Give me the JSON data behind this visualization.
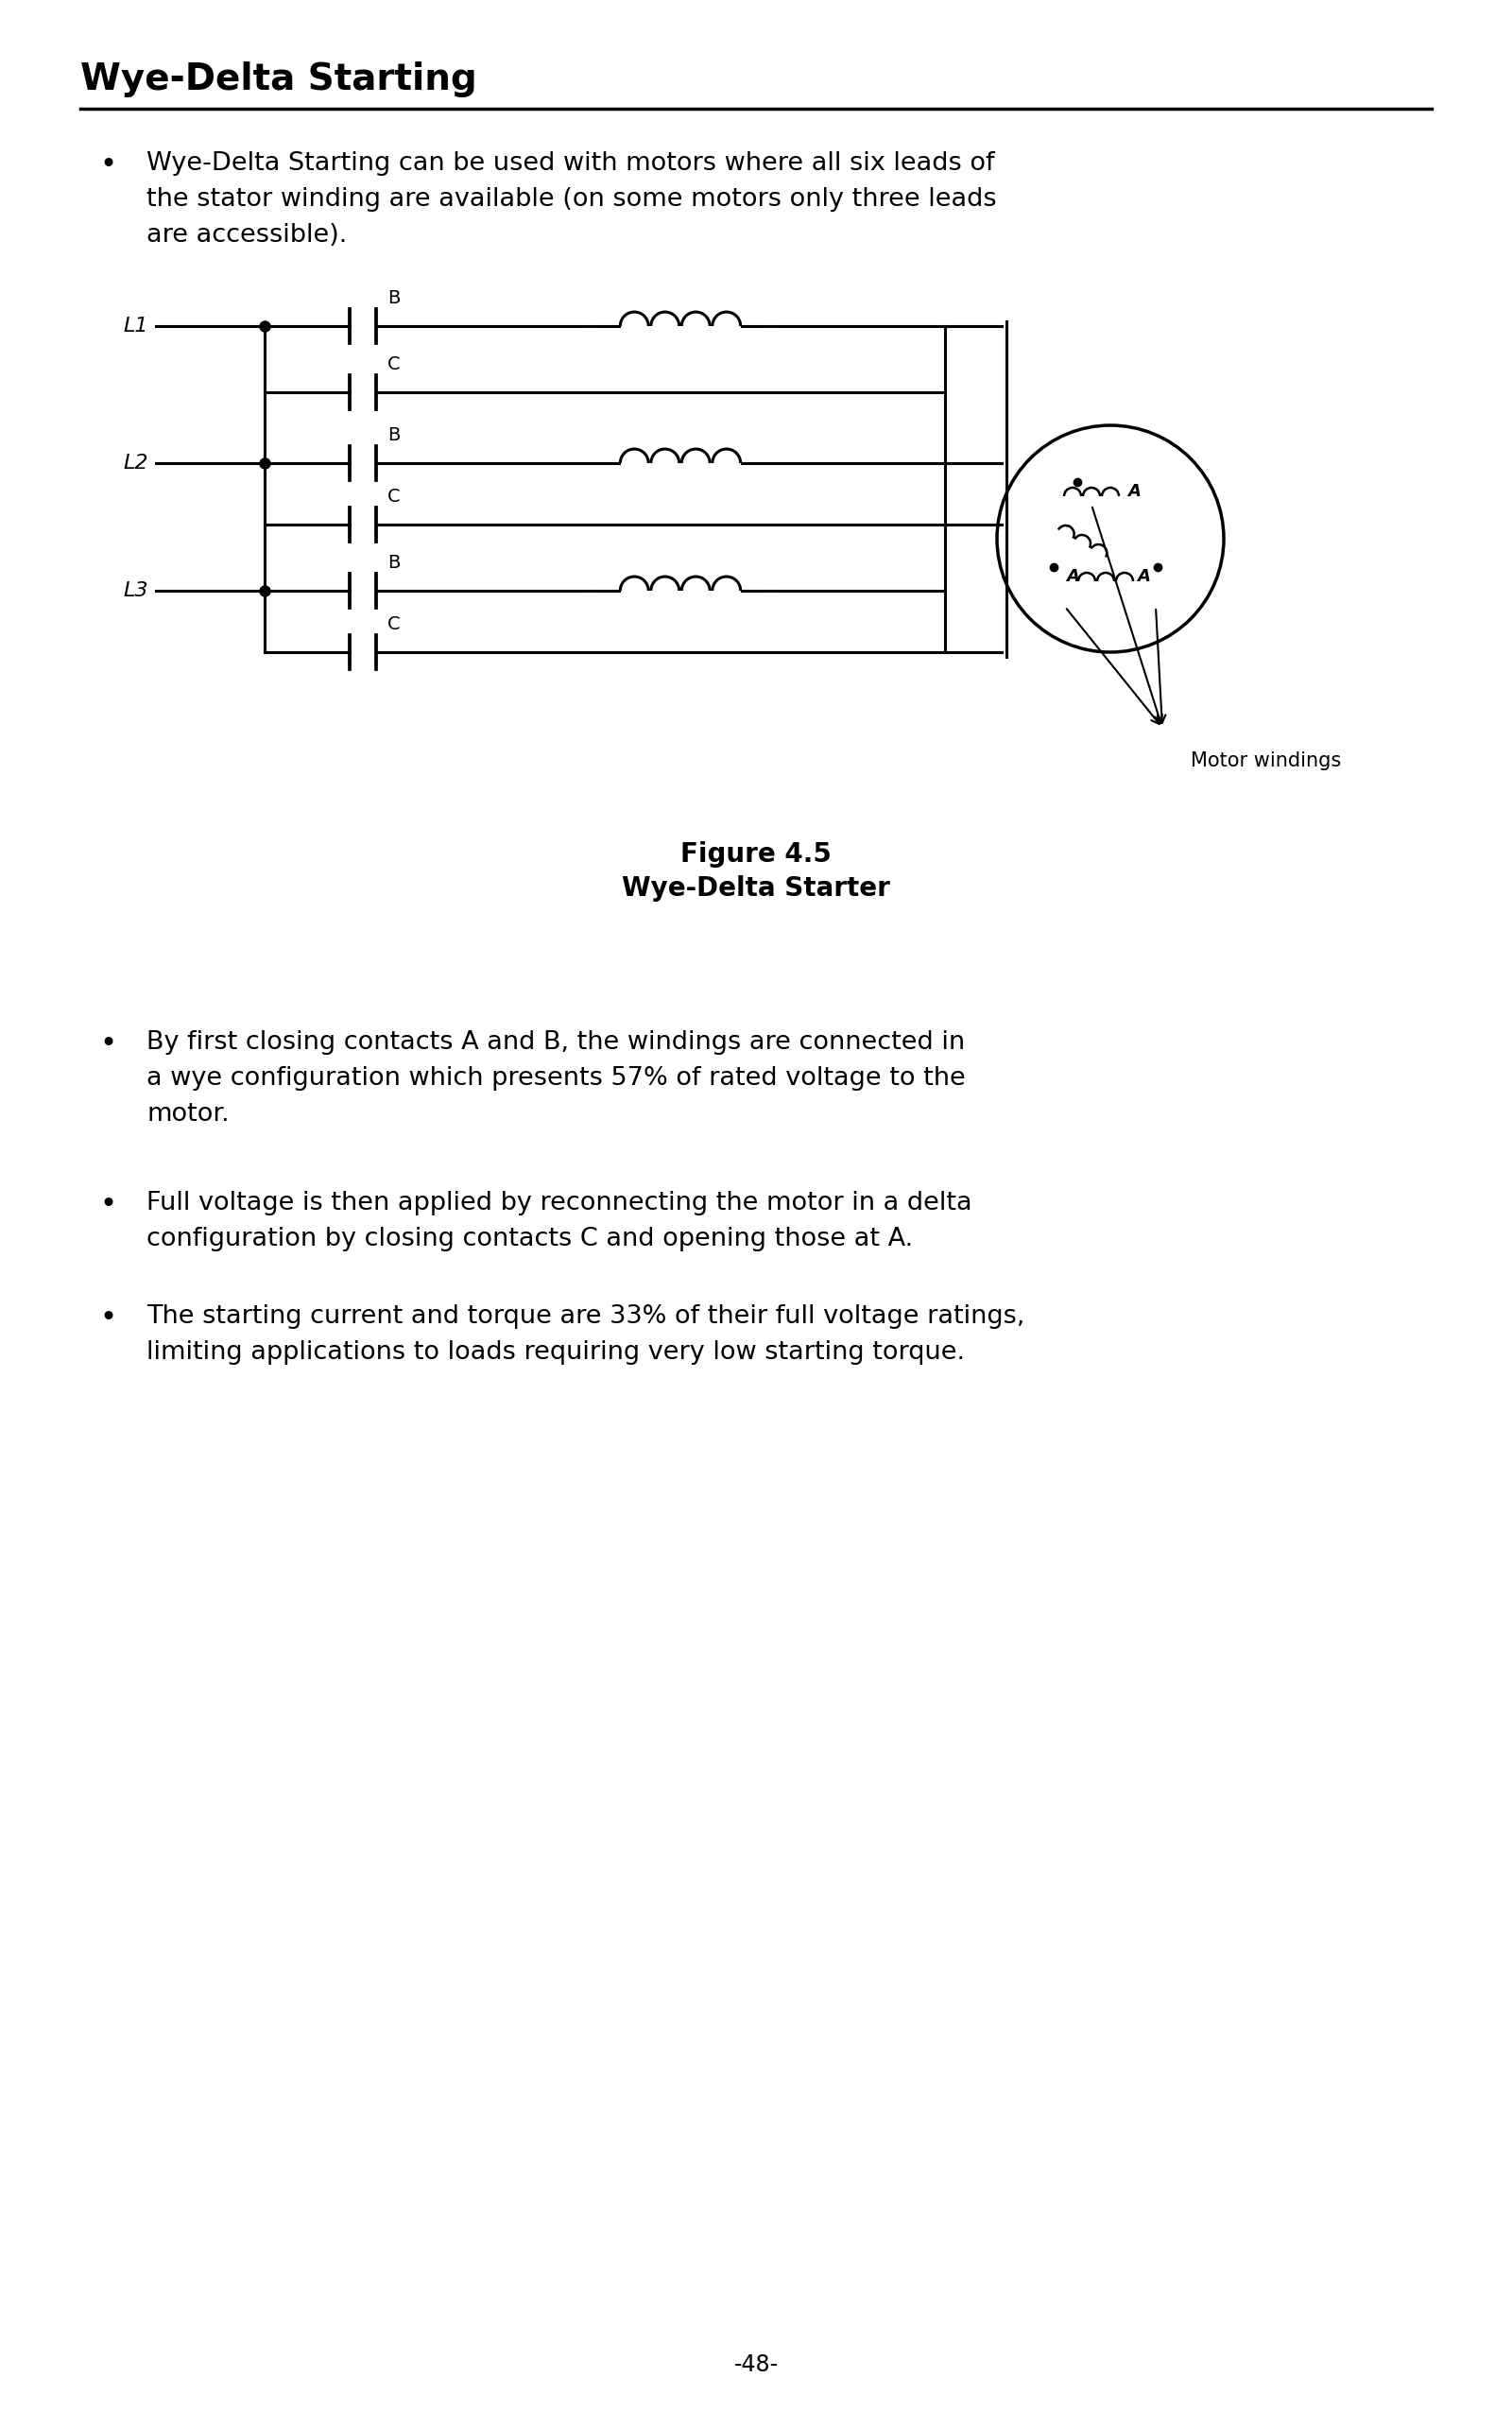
{
  "title": "Wye-Delta Starting",
  "bg_color": "#ffffff",
  "text_color": "#000000",
  "bullet1_line1": "Wye-Delta Starting can be used with motors where all six leads of",
  "bullet1_line2": "the stator winding are available (on some motors only three leads",
  "bullet1_line3": "are accessible).",
  "bullet2_line1": "By first closing contacts A and B, the windings are connected in",
  "bullet2_line2": "a wye configuration which presents 57% of rated voltage to the",
  "bullet2_line3": "motor.",
  "bullet3_line1": "Full voltage is then applied by reconnecting the motor in a delta",
  "bullet3_line2": "configuration by closing contacts C and opening those at A.",
  "bullet4_line1": "The starting current and torque are 33% of their full voltage ratings,",
  "bullet4_line2": "limiting applications to loads requiring very low starting torque.",
  "figure_label": "Figure 4.5",
  "figure_title": "Wye-Delta Starter",
  "motor_windings_label": "Motor windings",
  "page_number": "-48-"
}
